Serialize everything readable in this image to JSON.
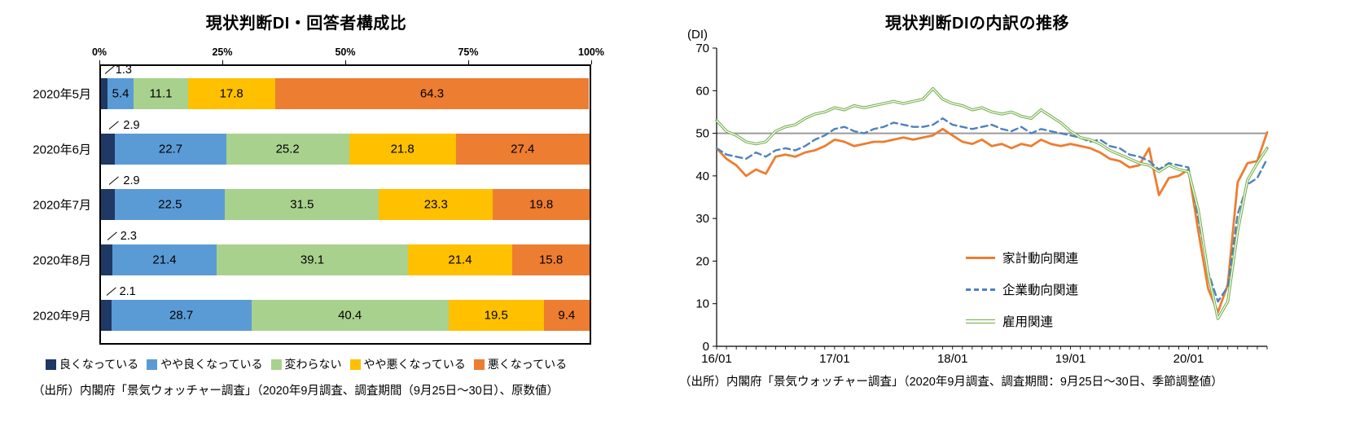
{
  "chart_data": [
    {
      "type": "bar",
      "subtype": "horizontal-stacked-100pct",
      "title": "現状判断DI・回答者構成比",
      "categories": [
        "2020年5月",
        "2020年6月",
        "2020年7月",
        "2020年8月",
        "2020年9月"
      ],
      "series": [
        {
          "name": "良くなっている",
          "color": "#1F3864",
          "values": [
            1.3,
            2.9,
            2.9,
            2.3,
            2.1
          ]
        },
        {
          "name": "やや良くなっている",
          "color": "#5B9BD5",
          "values": [
            5.4,
            22.7,
            22.5,
            21.4,
            28.7
          ]
        },
        {
          "name": "変わらない",
          "color": "#A9D18E",
          "values": [
            11.1,
            25.2,
            31.5,
            39.1,
            40.4
          ]
        },
        {
          "name": "やや悪くなっている",
          "color": "#FFC000",
          "values": [
            17.8,
            21.8,
            23.3,
            21.4,
            19.5
          ]
        },
        {
          "name": "悪くなっている",
          "color": "#ED7D31",
          "values": [
            64.3,
            27.4,
            19.8,
            15.8,
            9.4
          ]
        }
      ],
      "x_ticks": [
        "0%",
        "25%",
        "50%",
        "75%",
        "100%"
      ],
      "xlim": [
        0,
        100
      ],
      "legend_position": "bottom",
      "source": "（出所）内閣府「景気ウォッチャー調査」（2020年9月調査、調査期間（9月25日～30日）、原数値）"
    },
    {
      "type": "line",
      "title": "現状判断DIの内訳の推移",
      "y_axis_label": "(DI)",
      "ylim": [
        0,
        70
      ],
      "y_ticks": [
        0,
        10,
        20,
        30,
        40,
        50,
        60,
        70
      ],
      "reference_line_y": 50,
      "grid": false,
      "x_tick_labels": [
        "16/01",
        "17/01",
        "18/01",
        "19/01",
        "20/01"
      ],
      "x_tick_indices": [
        0,
        12,
        24,
        36,
        48
      ],
      "points_per_series": 57,
      "legend_position": "inside-right",
      "series": [
        {
          "name": "家計動向関連",
          "color": "#ED7D31",
          "style": "solid-thick",
          "values": [
            46.5,
            44.0,
            42.5,
            40.0,
            41.5,
            40.5,
            44.5,
            45.0,
            44.5,
            45.5,
            46.0,
            47.0,
            48.5,
            48.0,
            47.0,
            47.5,
            48.0,
            48.0,
            48.5,
            49.0,
            48.5,
            49.0,
            49.5,
            51.0,
            49.5,
            48.0,
            47.5,
            48.5,
            47.0,
            47.5,
            46.5,
            47.5,
            47.0,
            48.5,
            47.5,
            47.0,
            47.5,
            47.0,
            46.5,
            45.5,
            44.0,
            43.5,
            42.0,
            42.5,
            46.5,
            35.5,
            39.5,
            40.0,
            41.5,
            27.0,
            13.5,
            8.0,
            14.5,
            38.5,
            43.0,
            43.5,
            50.2
          ]
        },
        {
          "name": "企業動向関連",
          "color": "#4F81BD",
          "style": "dashed",
          "values": [
            46.5,
            45.0,
            44.5,
            44.0,
            45.5,
            44.5,
            46.0,
            46.5,
            46.0,
            47.0,
            48.5,
            49.5,
            51.0,
            51.5,
            50.5,
            50.0,
            51.0,
            51.5,
            52.5,
            52.0,
            51.5,
            51.5,
            52.0,
            53.5,
            52.0,
            51.5,
            51.0,
            51.5,
            52.0,
            51.0,
            50.5,
            51.5,
            50.0,
            51.0,
            50.5,
            50.0,
            49.5,
            49.0,
            48.0,
            48.5,
            47.0,
            46.5,
            45.0,
            44.5,
            43.5,
            41.5,
            43.0,
            42.5,
            42.0,
            30.0,
            17.5,
            10.5,
            14.0,
            31.0,
            38.0,
            39.5,
            44.0
          ]
        },
        {
          "name": "雇用関連",
          "color": "#70AD47",
          "style": "double",
          "values": [
            53.0,
            50.5,
            49.5,
            48.0,
            47.5,
            48.0,
            50.5,
            51.5,
            52.0,
            53.5,
            54.5,
            55.0,
            56.0,
            55.5,
            56.5,
            56.0,
            56.5,
            57.0,
            57.5,
            57.0,
            57.5,
            58.0,
            60.5,
            58.0,
            57.0,
            56.5,
            55.5,
            56.0,
            55.0,
            54.5,
            55.0,
            54.0,
            53.5,
            55.5,
            54.0,
            52.5,
            50.5,
            49.0,
            48.5,
            47.5,
            46.0,
            45.0,
            44.0,
            43.0,
            42.5,
            41.0,
            42.5,
            41.5,
            41.0,
            32.0,
            17.0,
            6.5,
            10.5,
            27.0,
            39.0,
            43.0,
            46.5
          ]
        }
      ],
      "source": "（出所）内閣府「景気ウォッチャー調査」（2020年9月調査、調査期間：9月25日～30日、季節調整値）"
    }
  ]
}
